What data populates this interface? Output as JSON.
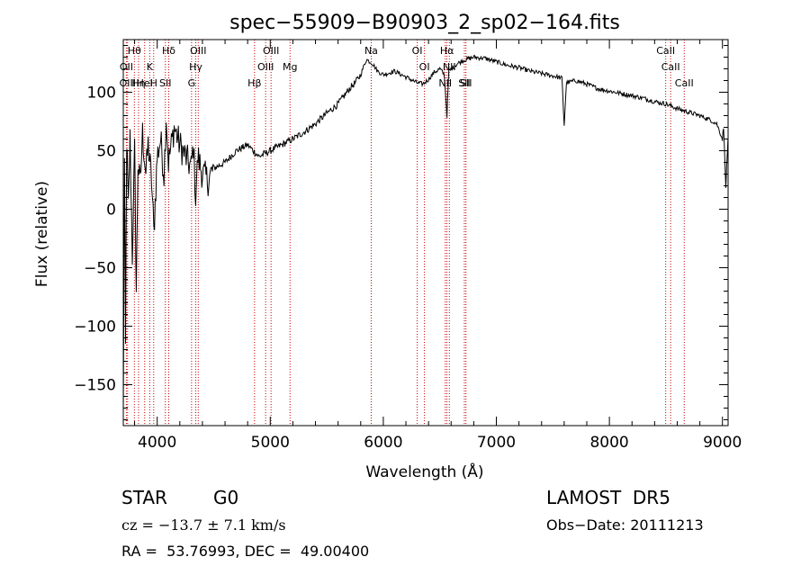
{
  "chart_data": {
    "type": "line",
    "title": "spec−55909−B90903_2_sp02−164.fits",
    "xlabel": "Wavelength (Å)",
    "ylabel": "Flux (relative)",
    "xlim": [
      3700,
      9050
    ],
    "ylim": [
      -185,
      145
    ],
    "xticks": [
      4000,
      5000,
      6000,
      7000,
      8000,
      9000
    ],
    "yticks": [
      -150,
      -100,
      -50,
      0,
      50,
      100
    ],
    "ytick_labels": [
      "−150",
      "−100",
      "−50",
      "0",
      "50",
      "100"
    ],
    "grid": false,
    "series": [
      {
        "color": "#000000",
        "anchors": [
          [
            3700,
            -180
          ],
          [
            3710,
            40
          ],
          [
            3720,
            -120
          ],
          [
            3730,
            60
          ],
          [
            3745,
            0
          ],
          [
            3760,
            60
          ],
          [
            3780,
            -40
          ],
          [
            3800,
            50
          ],
          [
            3815,
            -70
          ],
          [
            3830,
            40
          ],
          [
            3850,
            20
          ],
          [
            3870,
            65
          ],
          [
            3900,
            30
          ],
          [
            3920,
            55
          ],
          [
            3950,
            25
          ],
          [
            3970,
            -20
          ],
          [
            4000,
            45
          ],
          [
            4030,
            60
          ],
          [
            4060,
            30
          ],
          [
            4080,
            80
          ],
          [
            4100,
            40
          ],
          [
            4150,
            70
          ],
          [
            4200,
            55
          ],
          [
            4250,
            45
          ],
          [
            4300,
            35
          ],
          [
            4320,
            55
          ],
          [
            4340,
            10
          ],
          [
            4360,
            45
          ],
          [
            4400,
            30
          ],
          [
            4450,
            25
          ],
          [
            4500,
            35
          ],
          [
            4600,
            40
          ],
          [
            4700,
            50
          ],
          [
            4800,
            55
          ],
          [
            4900,
            45
          ],
          [
            5000,
            50
          ],
          [
            5100,
            55
          ],
          [
            5200,
            60
          ],
          [
            5300,
            66
          ],
          [
            5400,
            73
          ],
          [
            5500,
            82
          ],
          [
            5600,
            90
          ],
          [
            5700,
            103
          ],
          [
            5750,
            108
          ],
          [
            5800,
            115
          ],
          [
            5850,
            128
          ],
          [
            5900,
            125
          ],
          [
            5950,
            118
          ],
          [
            6000,
            115
          ],
          [
            6100,
            118
          ],
          [
            6200,
            113
          ],
          [
            6300,
            108
          ],
          [
            6350,
            107
          ],
          [
            6400,
            111
          ],
          [
            6450,
            117
          ],
          [
            6500,
            120
          ],
          [
            6540,
            115
          ],
          [
            6563,
            80
          ],
          [
            6580,
            118
          ],
          [
            6650,
            124
          ],
          [
            6700,
            127
          ],
          [
            6800,
            130
          ],
          [
            6900,
            129
          ],
          [
            7000,
            126
          ],
          [
            7100,
            123
          ],
          [
            7200,
            121
          ],
          [
            7300,
            118
          ],
          [
            7400,
            116
          ],
          [
            7500,
            114
          ],
          [
            7580,
            112
          ],
          [
            7600,
            72
          ],
          [
            7620,
            108
          ],
          [
            7700,
            110
          ],
          [
            7800,
            107
          ],
          [
            7900,
            103
          ],
          [
            8000,
            101
          ],
          [
            8100,
            99
          ],
          [
            8200,
            97
          ],
          [
            8300,
            95
          ],
          [
            8400,
            92
          ],
          [
            8500,
            90
          ],
          [
            8600,
            86
          ],
          [
            8700,
            83
          ],
          [
            8800,
            80
          ],
          [
            8900,
            76
          ],
          [
            8950,
            73
          ],
          [
            9000,
            60
          ],
          [
            9010,
            70
          ],
          [
            9030,
            20
          ],
          [
            9050,
            62
          ]
        ]
      }
    ],
    "lines": [
      {
        "label": "Hθ",
        "x": 3798
      },
      {
        "label": "OII",
        "x": 3727
      },
      {
        "label": "OIII",
        "x": 3738
      },
      {
        "label": "K",
        "x": 3934
      },
      {
        "label": "HeI",
        "x": 3889
      },
      {
        "label": "Hη",
        "x": 3835
      },
      {
        "label": "H",
        "x": 3969
      },
      {
        "label": "Hδ",
        "x": 4102
      },
      {
        "label": "SII",
        "x": 4072
      },
      {
        "label": "OIII",
        "x": 4363
      },
      {
        "label": "Hγ",
        "x": 4341
      },
      {
        "label": "G",
        "x": 4304
      },
      {
        "label": "OIII",
        "x": 5007
      },
      {
        "label": "OIII",
        "x": 4959
      },
      {
        "label": "Hβ",
        "x": 4861
      },
      {
        "label": "Mg",
        "x": 5175
      },
      {
        "label": "Na",
        "x": 5893
      },
      {
        "label": "OI",
        "x": 6300
      },
      {
        "label": "OI",
        "x": 6364
      },
      {
        "label": "Hα",
        "x": 6563
      },
      {
        "label": "NII",
        "x": 6548
      },
      {
        "label": "NII",
        "x": 6584
      },
      {
        "label": "SII",
        "x": 6717
      },
      {
        "label": "SII",
        "x": 6731
      },
      {
        "label": "CaII",
        "x": 8498
      },
      {
        "label": "CaII",
        "x": 8542
      },
      {
        "label": "CaII",
        "x": 8662
      }
    ]
  },
  "info": {
    "class_label": "STAR",
    "subclass": "G0",
    "survey": "LAMOST  DR5",
    "cz": "cz = −13.7 ± 7.1 km/s",
    "obs_date": "Obs−Date: 20111213",
    "radec": "RA =  53.76993, DEC =  49.00400"
  }
}
